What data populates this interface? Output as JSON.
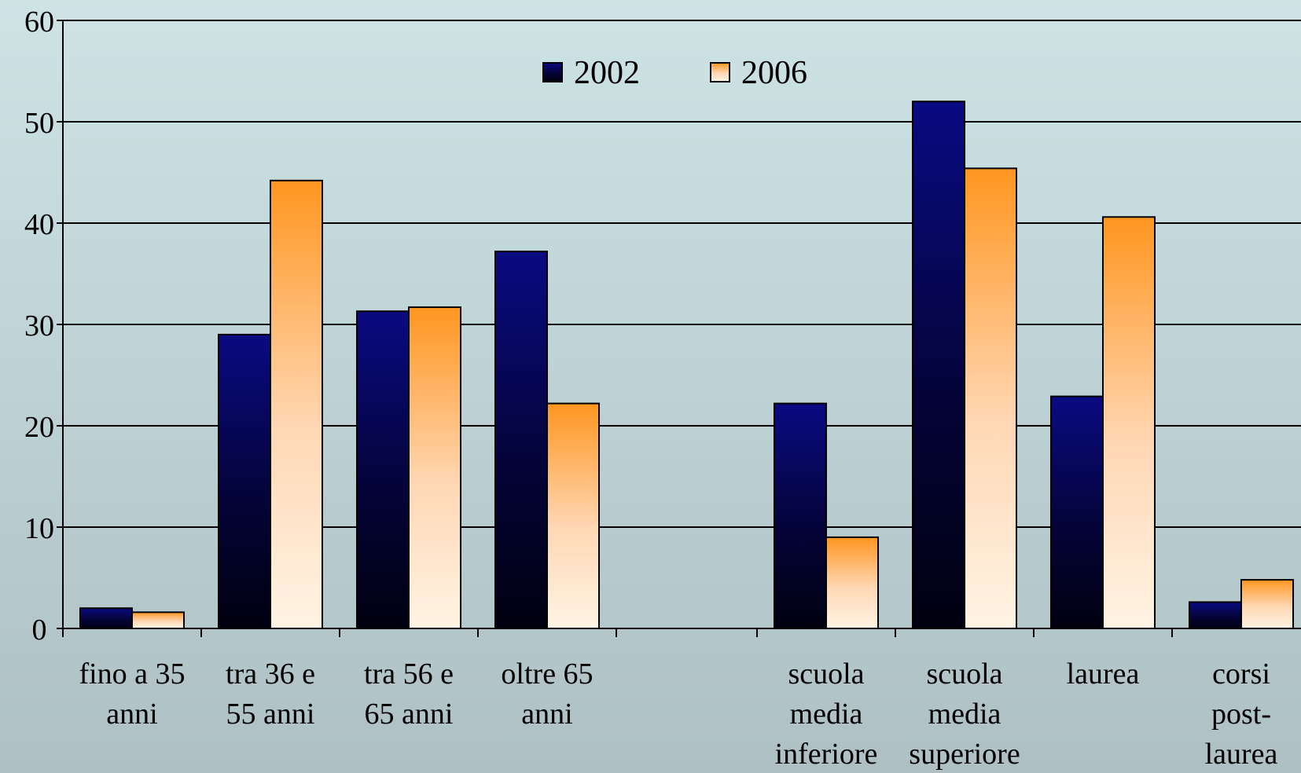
{
  "chart_data": {
    "type": "bar",
    "title": "",
    "xlabel": "",
    "ylabel": "",
    "ylim": [
      0,
      60
    ],
    "yticks": [
      0,
      10,
      20,
      30,
      40,
      50,
      60
    ],
    "grid": true,
    "legend_position": "top-center",
    "groups": [
      {
        "label_lines": [
          "fino a 35",
          "anni"
        ],
        "values": [
          2.0,
          1.6
        ]
      },
      {
        "label_lines": [
          "tra 36 e",
          "55 anni"
        ],
        "values": [
          29.0,
          44.2
        ]
      },
      {
        "label_lines": [
          "tra 56 e",
          "65 anni"
        ],
        "values": [
          31.3,
          31.7
        ]
      },
      {
        "label_lines": [
          "oltre 65",
          "anni"
        ],
        "values": [
          37.2,
          22.2
        ]
      },
      {
        "label_lines": [],
        "values": [
          null,
          null
        ]
      },
      {
        "label_lines": [
          "scuola",
          "media",
          "inferiore"
        ],
        "values": [
          22.2,
          9.0
        ]
      },
      {
        "label_lines": [
          "scuola",
          "media",
          "superiore"
        ],
        "values": [
          52.0,
          45.4
        ]
      },
      {
        "label_lines": [
          "laurea"
        ],
        "values": [
          22.9,
          40.6
        ]
      },
      {
        "label_lines": [
          "corsi",
          "post-",
          "laurea"
        ],
        "values": [
          2.6,
          4.8
        ]
      }
    ],
    "series": [
      {
        "name": "2002",
        "color": "#0a0a78"
      },
      {
        "name": "2006",
        "color": "#ff9a2a"
      }
    ]
  }
}
